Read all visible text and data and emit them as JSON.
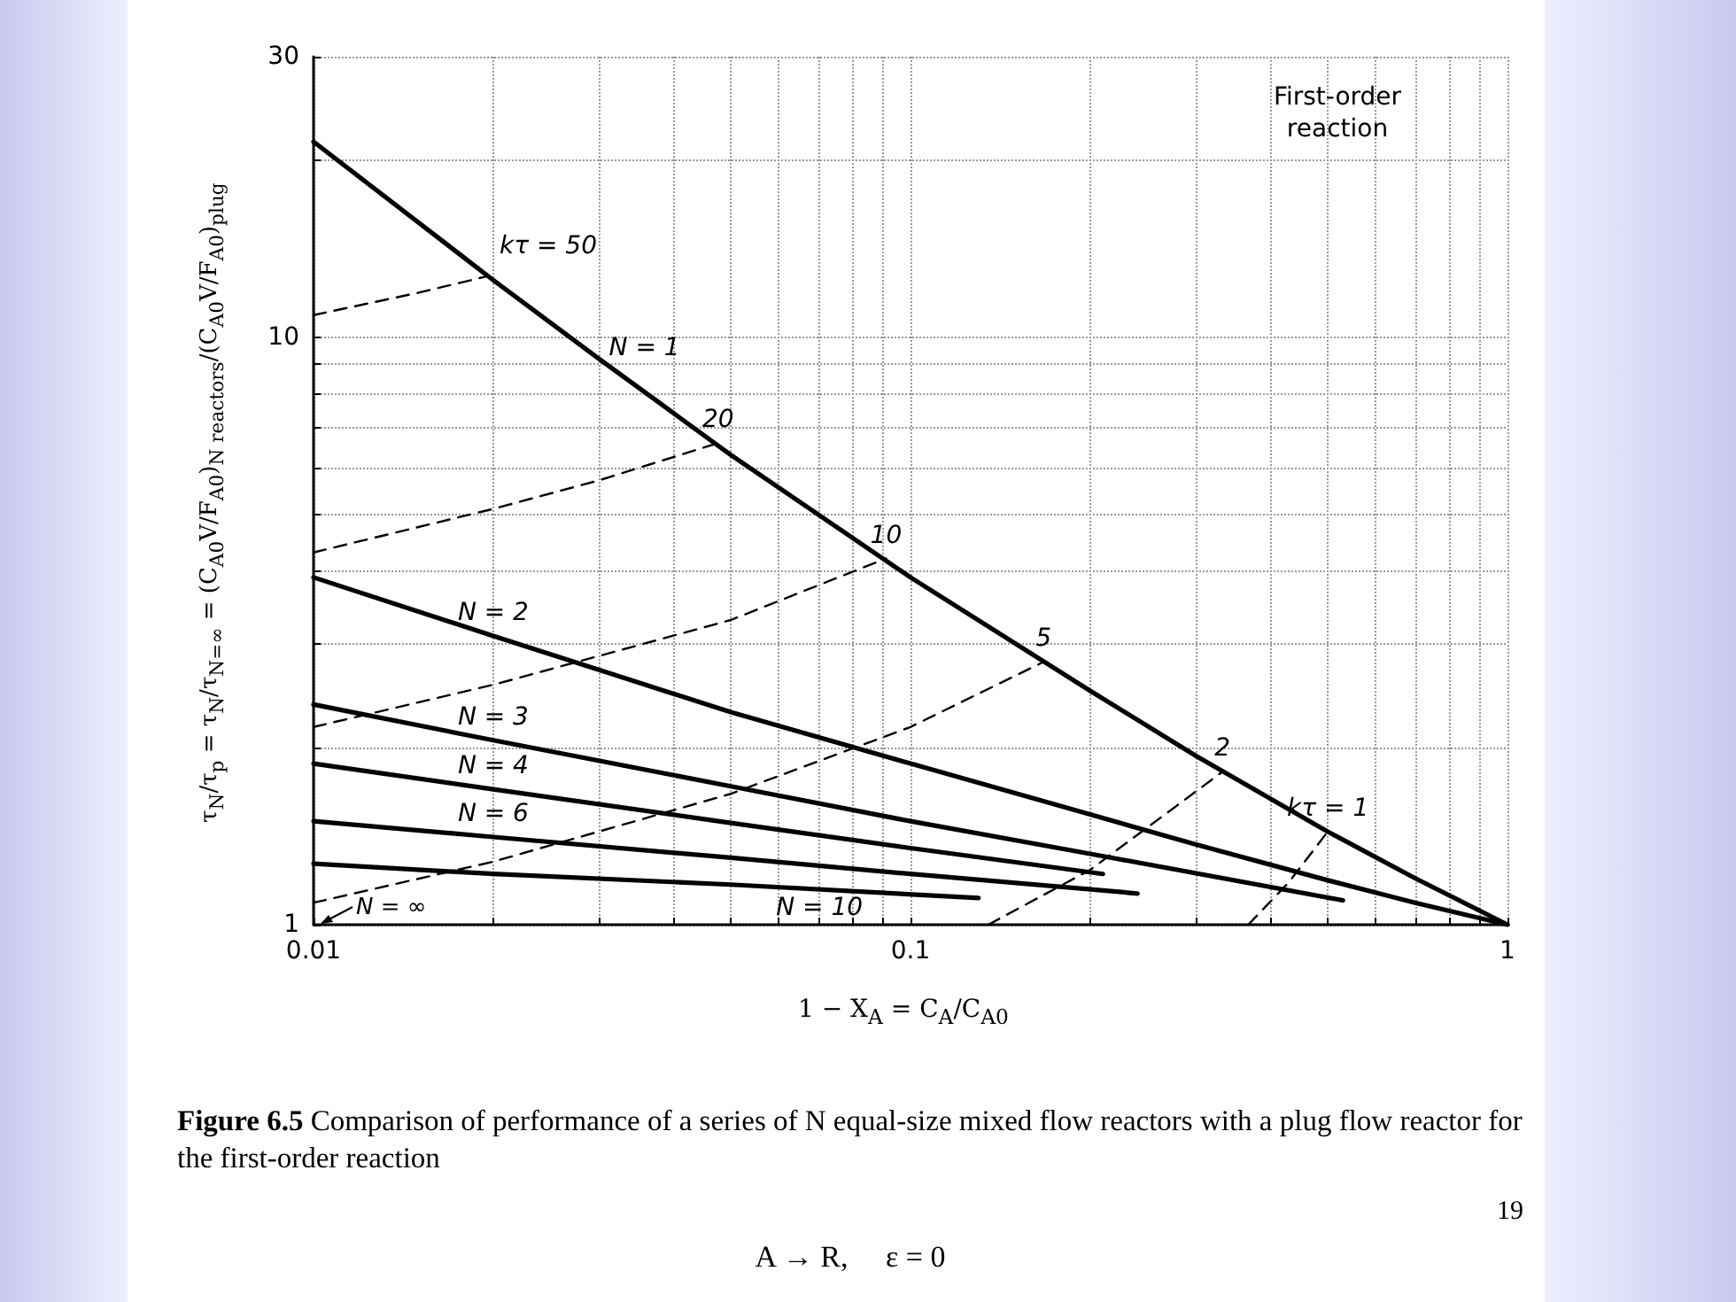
{
  "chart_data": {
    "type": "line",
    "title": "Figure 6.5 Comparison of performance of a series of N equal-size mixed flow reactors with a plug flow reactor for the first-order reaction",
    "xlabel": "1 − X$_{A}$ = C$_{A}$/C$_{A0}$",
    "ylabel": "τ$_{N}$/τ$_{p}$ = τ$_{N}$/τ$_{N=∞}$ = (C$_{A0}$V/F$_{A0}$)$_{N reactors}$/(C$_{A0}$V/F$_{A0}$)$_{plug}$",
    "annotations": [
      "First-order reaction",
      "A → R,     ε = 0",
      "19",
      "N = ∞"
    ],
    "log": "xy",
    "grid": true,
    "legend": false,
    "marker": "none",
    "xlim": [
      0.01,
      1
    ],
    "xticks": [
      0.01,
      {
        "value": 0.02,
        "label": null
      },
      {
        "value": 0.03,
        "label": null
      },
      {
        "value": 0.04,
        "label": null
      },
      {
        "value": 0.05,
        "label": null
      },
      {
        "value": 0.06,
        "label": null
      },
      {
        "value": 0.07,
        "label": null
      },
      {
        "value": 0.08,
        "label": null
      },
      {
        "value": 0.09,
        "label": null
      },
      0.1,
      {
        "value": 0.2,
        "label": null
      },
      {
        "value": 0.3,
        "label": null
      },
      {
        "value": 0.4,
        "label": null
      },
      {
        "value": 0.5,
        "label": null
      },
      {
        "value": 0.6,
        "label": null
      },
      {
        "value": 0.7,
        "label": null
      },
      {
        "value": 0.8,
        "label": null
      },
      {
        "value": 0.9,
        "label": null
      },
      1
    ],
    "ylim": [
      1,
      30
    ],
    "yticks": [
      1,
      {
        "value": 2,
        "label": null
      },
      {
        "value": 3,
        "label": null
      },
      {
        "value": 4,
        "label": null
      },
      {
        "value": 5,
        "label": null
      },
      {
        "value": 6,
        "label": null
      },
      {
        "value": 7,
        "label": null
      },
      {
        "value": 8,
        "label": null
      },
      {
        "value": 9,
        "label": null
      },
      10,
      {
        "value": 20,
        "label": null
      },
      30
    ],
    "series": [
      {
        "name": "N = 1",
        "color": "#000000",
        "line_style": "solid",
        "x": [
          0.01,
          0.02,
          0.03,
          0.05,
          0.1,
          0.2,
          0.3,
          0.5,
          0.7,
          1
        ],
        "values": [
          21.5,
          12.5,
          9.2,
          6.3,
          3.9,
          2.5,
          1.94,
          1.44,
          1.2,
          1
        ]
      },
      {
        "name": "N = 2",
        "color": "#000000",
        "line_style": "solid",
        "x": [
          0.01,
          0.02,
          0.05,
          0.1,
          0.2,
          0.3,
          0.5,
          0.7,
          1
        ],
        "values": [
          3.9,
          3.1,
          2.3,
          1.88,
          1.54,
          1.37,
          1.19,
          1.09,
          1
        ]
      },
      {
        "name": "N = 3",
        "color": "#000000",
        "line_style": "solid",
        "x": [
          0.01,
          0.02,
          0.05,
          0.1,
          0.2,
          0.53
        ],
        "values": [
          2.37,
          2.06,
          1.72,
          1.5,
          1.32,
          1.1
        ]
      },
      {
        "name": "N = 4",
        "color": "#000000",
        "line_style": "solid",
        "x": [
          0.01,
          0.02,
          0.05,
          0.1,
          0.21
        ],
        "values": [
          1.88,
          1.7,
          1.49,
          1.35,
          1.22
        ]
      },
      {
        "name": "N = 6",
        "color": "#000000",
        "line_style": "solid",
        "x": [
          0.01,
          0.02,
          0.05,
          0.1,
          0.24
        ],
        "values": [
          1.5,
          1.41,
          1.3,
          1.22,
          1.13
        ]
      },
      {
        "name": "N = 10",
        "color": "#000000",
        "line_style": "solid",
        "x": [
          0.01,
          0.02,
          0.05,
          0.13
        ],
        "values": [
          1.27,
          1.22,
          1.17,
          1.11
        ]
      },
      {
        "name": "kτ = 50",
        "color": "#000000",
        "line_style": "dashed",
        "x": [
          0.01,
          0.015,
          0.0196
        ],
        "values": [
          10.9,
          11.9,
          12.7
        ]
      },
      {
        "name": "20",
        "color": "#000000",
        "line_style": "dashed",
        "x": [
          0.01,
          0.02,
          0.03,
          0.0476
        ],
        "values": [
          4.3,
          5.1,
          5.7,
          6.6
        ]
      },
      {
        "name": "10",
        "color": "#000000",
        "line_style": "dashed",
        "x": [
          0.01,
          0.02,
          0.05,
          0.091
        ],
        "values": [
          2.17,
          2.56,
          3.3,
          4.2
        ]
      },
      {
        "name": "5",
        "color": "#000000",
        "line_style": "dashed",
        "x": [
          0.01,
          0.02,
          0.05,
          0.1,
          0.167
        ],
        "values": [
          1.09,
          1.28,
          1.67,
          2.17,
          2.8
        ]
      },
      {
        "name": "2",
        "color": "#000000",
        "line_style": "dashed",
        "x": [
          0.135,
          0.2,
          0.333
        ],
        "values": [
          1,
          1.24,
          1.82
        ]
      },
      {
        "name": "kτ = 1",
        "color": "#000000",
        "line_style": "dashed",
        "x": [
          0.368,
          0.43,
          0.5
        ],
        "values": [
          1,
          1.18,
          1.44
        ]
      }
    ]
  }
}
